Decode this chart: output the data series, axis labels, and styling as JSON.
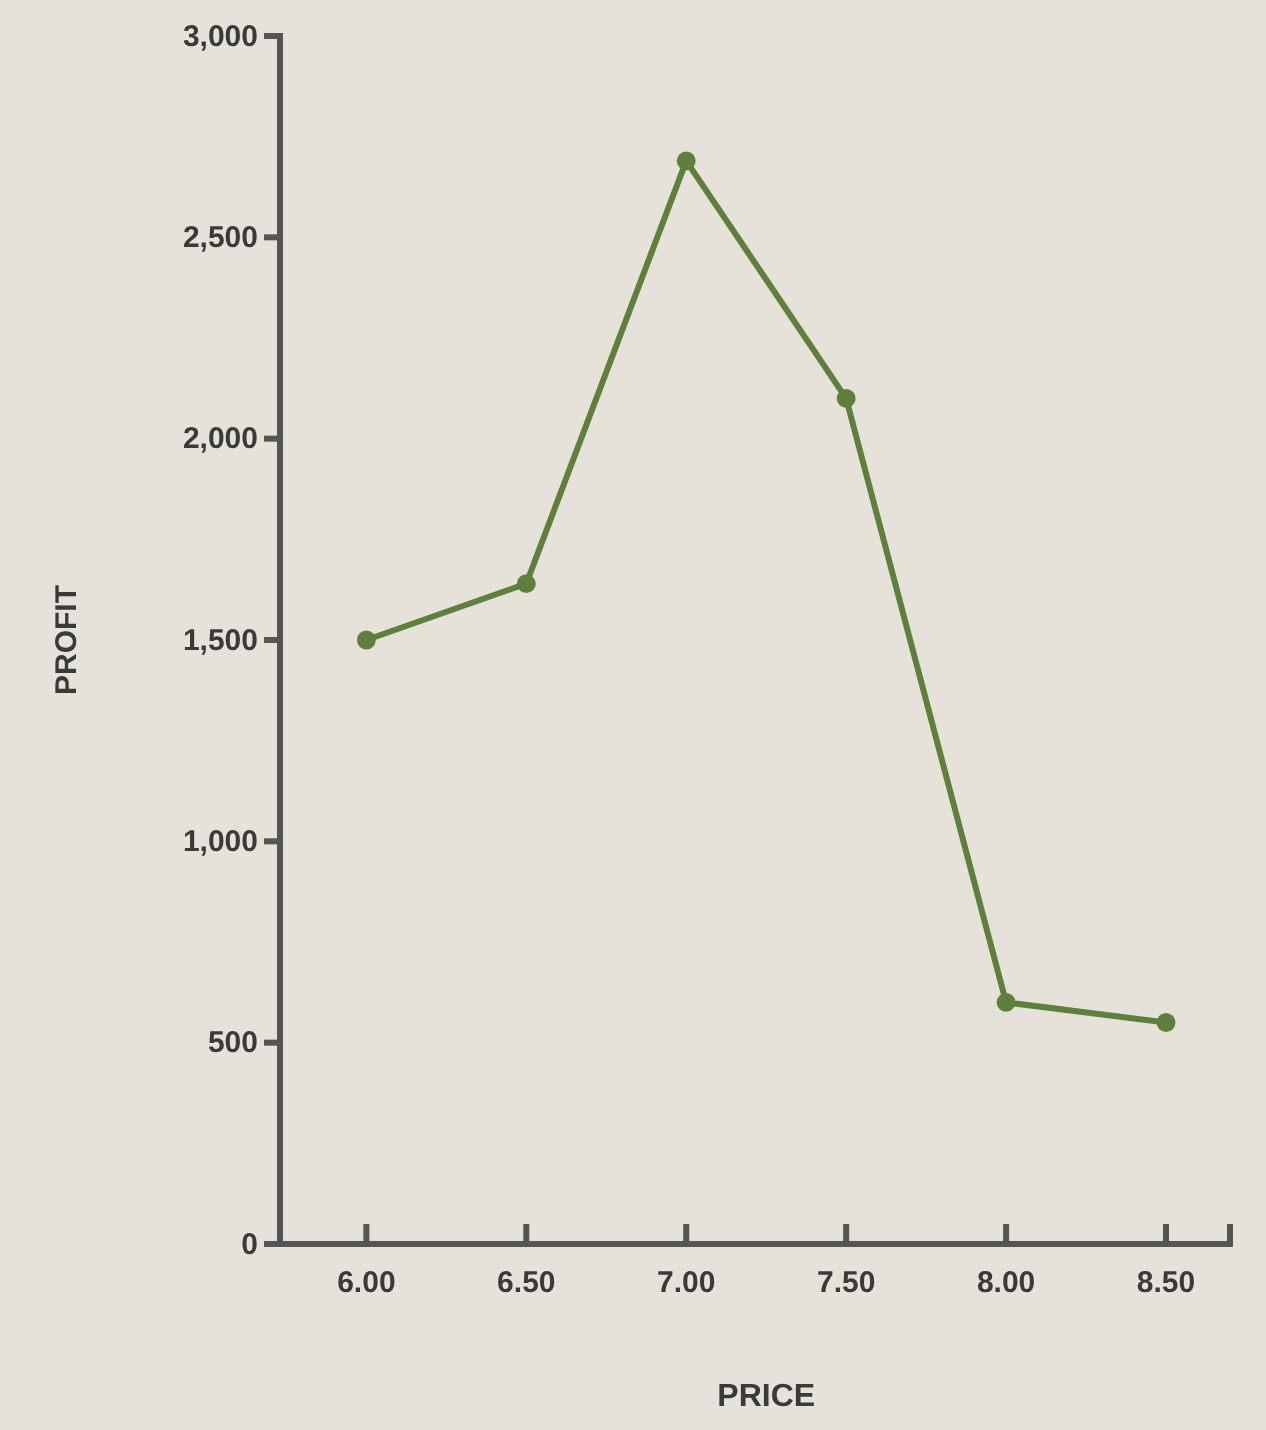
{
  "chart_data": {
    "type": "line",
    "xlabel": "PRICE",
    "ylabel": "PROFIT",
    "x": [
      6.0,
      6.5,
      7.0,
      7.5,
      8.0,
      8.5
    ],
    "series": [
      {
        "color": "#5f7f3c",
        "values": [
          1500,
          1640,
          2690,
          2100,
          600,
          550
        ]
      }
    ],
    "xlim": [
      5.73,
      8.7
    ],
    "xticks": [
      {
        "value": 6,
        "label": "6.00"
      },
      {
        "value": 6.5,
        "label": "6.50"
      },
      {
        "value": 7,
        "label": "7.00"
      },
      {
        "value": 7.5,
        "label": "7.50"
      },
      {
        "value": 8,
        "label": "8.00"
      },
      {
        "value": 8.5,
        "label": "8.50"
      }
    ],
    "ylim": [
      0,
      3000
    ],
    "yticks": [
      {
        "value": 0,
        "label": "0"
      },
      {
        "value": 500,
        "label": "500"
      },
      {
        "value": 1000,
        "label": "1,000"
      },
      {
        "value": 1500,
        "label": "1,500"
      },
      {
        "value": 2000,
        "label": "2,000"
      },
      {
        "value": 2500,
        "label": "2,500"
      },
      {
        "value": 3000,
        "label": "3,000"
      }
    ],
    "grid": false,
    "marker": "circle",
    "line_style": "solid"
  }
}
